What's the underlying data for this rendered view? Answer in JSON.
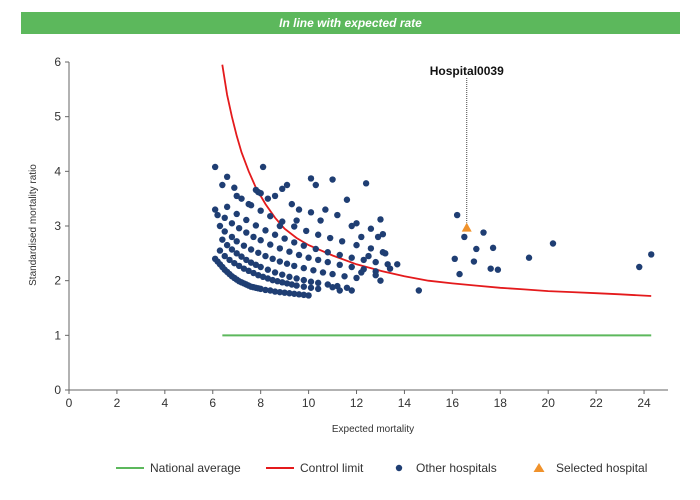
{
  "banner": {
    "text": "In line with expected rate"
  },
  "chart_data": {
    "type": "scatter",
    "xlabel": "Expected mortality",
    "ylabel": "Standardised mortality ratio",
    "xlim": [
      0,
      25
    ],
    "ylim": [
      0,
      6
    ],
    "xticks": [
      0,
      2,
      4,
      6,
      8,
      10,
      12,
      14,
      16,
      18,
      20,
      22,
      24
    ],
    "yticks": [
      0,
      1,
      2,
      3,
      4,
      5,
      6
    ],
    "grid": false,
    "legend_position": "bottom",
    "colors": {
      "national": "#5cb85c",
      "control": "#e41a1c",
      "others": "#1f3e73",
      "selected": "#f0922b"
    },
    "national_average": {
      "name": "National average",
      "x": [
        6.4,
        24.3
      ],
      "y": [
        1,
        1
      ]
    },
    "control_limit": {
      "name": "Control limit",
      "x": [
        6.4,
        6.6,
        6.8,
        7.0,
        7.2,
        7.5,
        7.8,
        8.2,
        8.6,
        9.0,
        9.5,
        10.0,
        11.0,
        12.0,
        13.0,
        14.0,
        15.0,
        16.0,
        17.0,
        18.0,
        19.0,
        20.0,
        21.0,
        22.0,
        23.0,
        24.3
      ],
      "y": [
        5.95,
        5.4,
        5.0,
        4.65,
        4.35,
        4.0,
        3.7,
        3.4,
        3.15,
        2.95,
        2.78,
        2.65,
        2.46,
        2.3,
        2.18,
        2.08,
        2.0,
        1.95,
        1.91,
        1.87,
        1.84,
        1.81,
        1.79,
        1.77,
        1.75,
        1.72
      ]
    },
    "other_hospitals": {
      "name": "Other hospitals",
      "points": [
        [
          6.1,
          2.4
        ],
        [
          6.2,
          2.35
        ],
        [
          6.3,
          2.3
        ],
        [
          6.4,
          2.25
        ],
        [
          6.5,
          2.2
        ],
        [
          6.6,
          2.16
        ],
        [
          6.7,
          2.12
        ],
        [
          6.8,
          2.08
        ],
        [
          6.9,
          2.05
        ],
        [
          7.0,
          2.02
        ],
        [
          7.1,
          1.99
        ],
        [
          7.2,
          1.97
        ],
        [
          7.3,
          1.95
        ],
        [
          7.4,
          1.93
        ],
        [
          7.5,
          1.91
        ],
        [
          7.6,
          1.89
        ],
        [
          7.7,
          1.88
        ],
        [
          7.8,
          1.87
        ],
        [
          7.9,
          1.86
        ],
        [
          8.0,
          1.85
        ],
        [
          8.2,
          1.83
        ],
        [
          8.4,
          1.82
        ],
        [
          8.6,
          1.8
        ],
        [
          8.8,
          1.79
        ],
        [
          9.0,
          1.78
        ],
        [
          9.2,
          1.77
        ],
        [
          9.4,
          1.76
        ],
        [
          9.6,
          1.75
        ],
        [
          9.8,
          1.74
        ],
        [
          10.0,
          1.73
        ],
        [
          6.3,
          2.55
        ],
        [
          6.5,
          2.45
        ],
        [
          6.7,
          2.38
        ],
        [
          6.9,
          2.32
        ],
        [
          7.1,
          2.27
        ],
        [
          7.3,
          2.22
        ],
        [
          7.5,
          2.18
        ],
        [
          7.7,
          2.14
        ],
        [
          7.9,
          2.1
        ],
        [
          8.1,
          2.07
        ],
        [
          8.3,
          2.04
        ],
        [
          8.5,
          2.01
        ],
        [
          8.7,
          1.99
        ],
        [
          8.9,
          1.97
        ],
        [
          9.1,
          1.95
        ],
        [
          9.3,
          1.93
        ],
        [
          9.5,
          1.91
        ],
        [
          9.8,
          1.89
        ],
        [
          10.1,
          1.87
        ],
        [
          10.4,
          1.85
        ],
        [
          6.4,
          2.75
        ],
        [
          6.6,
          2.65
        ],
        [
          6.8,
          2.57
        ],
        [
          7.0,
          2.5
        ],
        [
          7.2,
          2.44
        ],
        [
          7.4,
          2.38
        ],
        [
          7.6,
          2.33
        ],
        [
          7.8,
          2.29
        ],
        [
          8.0,
          2.25
        ],
        [
          8.3,
          2.2
        ],
        [
          8.6,
          2.15
        ],
        [
          8.9,
          2.11
        ],
        [
          9.2,
          2.07
        ],
        [
          9.5,
          2.04
        ],
        [
          9.8,
          2.01
        ],
        [
          10.1,
          1.98
        ],
        [
          10.4,
          1.96
        ],
        [
          10.8,
          1.93
        ],
        [
          11.2,
          1.9
        ],
        [
          11.6,
          1.87
        ],
        [
          6.3,
          3.0
        ],
        [
          6.5,
          2.9
        ],
        [
          6.8,
          2.8
        ],
        [
          7.0,
          2.72
        ],
        [
          7.3,
          2.64
        ],
        [
          7.6,
          2.57
        ],
        [
          7.9,
          2.51
        ],
        [
          8.2,
          2.45
        ],
        [
          8.5,
          2.4
        ],
        [
          8.8,
          2.35
        ],
        [
          9.1,
          2.31
        ],
        [
          9.4,
          2.27
        ],
        [
          9.8,
          2.23
        ],
        [
          10.2,
          2.19
        ],
        [
          10.6,
          2.15
        ],
        [
          11.0,
          2.12
        ],
        [
          11.5,
          2.08
        ],
        [
          12.0,
          2.05
        ],
        [
          6.5,
          3.15
        ],
        [
          6.8,
          3.05
        ],
        [
          7.1,
          2.96
        ],
        [
          7.4,
          2.88
        ],
        [
          7.7,
          2.8
        ],
        [
          8.0,
          2.74
        ],
        [
          8.4,
          2.66
        ],
        [
          8.8,
          2.59
        ],
        [
          9.2,
          2.53
        ],
        [
          9.6,
          2.47
        ],
        [
          10.0,
          2.42
        ],
        [
          10.4,
          2.38
        ],
        [
          10.8,
          2.34
        ],
        [
          11.3,
          2.29
        ],
        [
          11.8,
          2.25
        ],
        [
          12.3,
          2.21
        ],
        [
          12.8,
          2.17
        ],
        [
          6.6,
          3.35
        ],
        [
          7.0,
          3.22
        ],
        [
          7.4,
          3.11
        ],
        [
          7.8,
          3.01
        ],
        [
          8.2,
          2.92
        ],
        [
          8.6,
          2.84
        ],
        [
          9.0,
          2.77
        ],
        [
          9.4,
          2.7
        ],
        [
          9.8,
          2.64
        ],
        [
          10.3,
          2.58
        ],
        [
          10.8,
          2.52
        ],
        [
          11.3,
          2.47
        ],
        [
          11.8,
          2.42
        ],
        [
          12.3,
          2.38
        ],
        [
          12.8,
          2.34
        ],
        [
          13.3,
          2.3
        ],
        [
          7.2,
          3.5
        ],
        [
          7.6,
          3.38
        ],
        [
          8.0,
          3.28
        ],
        [
          8.4,
          3.18
        ],
        [
          8.9,
          3.08
        ],
        [
          9.4,
          2.99
        ],
        [
          9.9,
          2.91
        ],
        [
          10.4,
          2.84
        ],
        [
          10.9,
          2.78
        ],
        [
          11.4,
          2.72
        ],
        [
          12.0,
          2.65
        ],
        [
          12.6,
          2.59
        ],
        [
          13.1,
          2.52
        ],
        [
          6.1,
          3.3
        ],
        [
          6.2,
          3.2
        ],
        [
          6.4,
          3.75
        ],
        [
          6.6,
          3.9
        ],
        [
          6.9,
          3.7
        ],
        [
          7.0,
          3.55
        ],
        [
          7.5,
          3.4
        ],
        [
          7.9,
          3.62
        ],
        [
          7.8,
          3.66
        ],
        [
          8.1,
          4.08
        ],
        [
          8.3,
          3.5
        ],
        [
          8.6,
          3.55
        ],
        [
          8.9,
          3.68
        ],
        [
          9.1,
          3.75
        ],
        [
          9.3,
          3.4
        ],
        [
          9.6,
          3.3
        ],
        [
          10.1,
          3.87
        ],
        [
          10.3,
          3.75
        ],
        [
          10.1,
          3.25
        ],
        [
          10.7,
          3.3
        ],
        [
          11.0,
          3.85
        ],
        [
          11.2,
          3.2
        ],
        [
          11.6,
          3.48
        ],
        [
          12.0,
          3.05
        ],
        [
          12.4,
          3.78
        ],
        [
          12.6,
          2.95
        ],
        [
          13.0,
          3.12
        ],
        [
          6.1,
          4.08
        ],
        [
          8.0,
          3.6
        ],
        [
          8.8,
          3.0
        ],
        [
          9.5,
          3.1
        ],
        [
          10.5,
          3.1
        ],
        [
          11.8,
          3.0
        ],
        [
          12.2,
          2.8
        ],
        [
          12.5,
          2.45
        ],
        [
          12.9,
          2.8
        ],
        [
          13.1,
          2.85
        ],
        [
          13.2,
          2.5
        ],
        [
          12.2,
          2.15
        ],
        [
          12.8,
          2.1
        ],
        [
          13.0,
          2.0
        ],
        [
          13.4,
          2.22
        ],
        [
          13.7,
          2.3
        ],
        [
          11.0,
          1.88
        ],
        [
          11.3,
          1.82
        ],
        [
          11.8,
          1.82
        ],
        [
          14.6,
          1.82
        ],
        [
          16.2,
          3.2
        ],
        [
          16.1,
          2.4
        ],
        [
          16.3,
          2.12
        ],
        [
          16.5,
          2.8
        ],
        [
          16.9,
          2.35
        ],
        [
          17.0,
          2.58
        ],
        [
          17.3,
          2.88
        ],
        [
          17.6,
          2.22
        ],
        [
          17.7,
          2.6
        ],
        [
          17.9,
          2.2
        ],
        [
          19.2,
          2.42
        ],
        [
          20.2,
          2.68
        ],
        [
          23.8,
          2.25
        ],
        [
          24.3,
          2.48
        ]
      ]
    },
    "selected_hospital": {
      "name": "Selected hospital",
      "label": "Hospital0039",
      "x": 16.6,
      "y": 2.97
    }
  }
}
